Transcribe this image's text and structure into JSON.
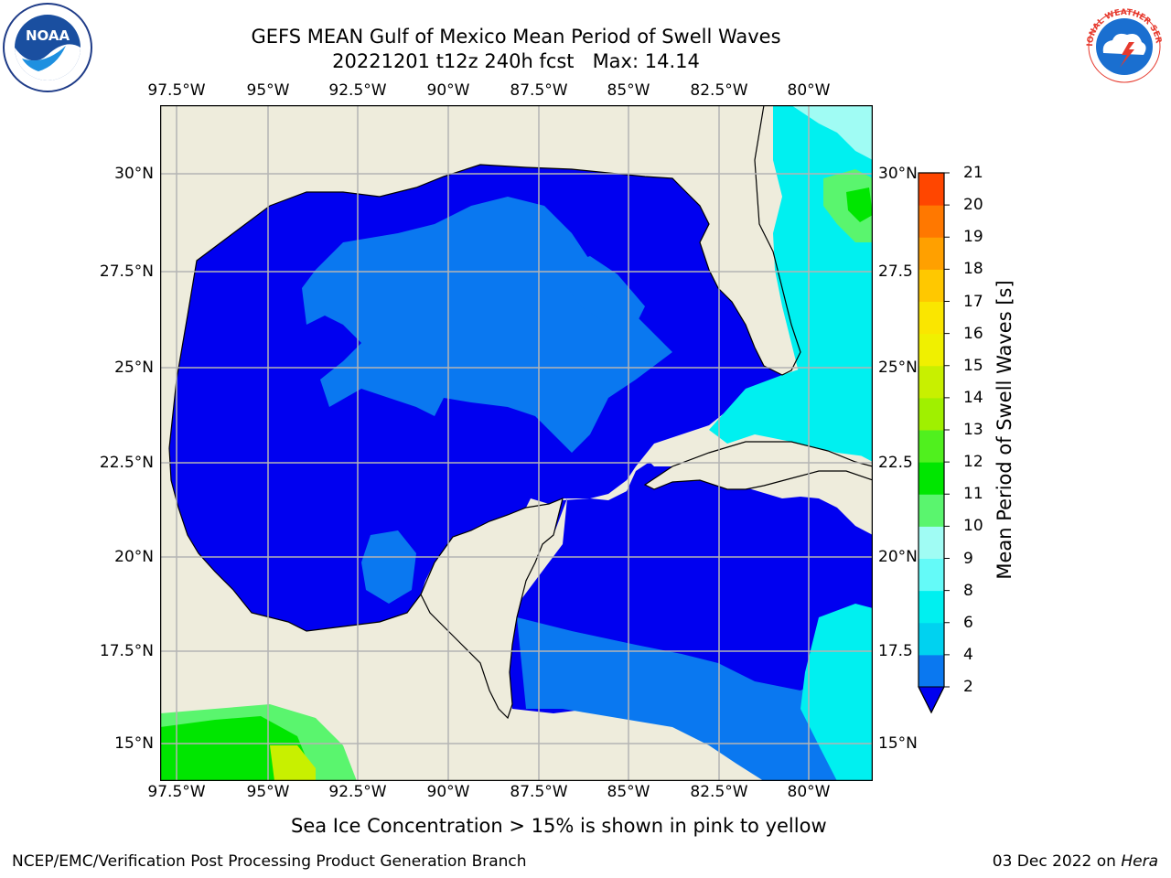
{
  "title": {
    "line1": "GEFS MEAN Gulf of Mexico Mean Period of Swell Waves",
    "line2": "20221201 t12z 240h fcst   Max: 14.14"
  },
  "map": {
    "lon_labels": [
      "97.5°W",
      "95°W",
      "92.5°W",
      "90°W",
      "87.5°W",
      "85°W",
      "82.5°W",
      "80°W"
    ],
    "lat_labels_left": [
      "30°N",
      "27.5°N",
      "25°N",
      "22.5°N",
      "20°N",
      "17.5°N",
      "15°N"
    ],
    "lat_labels_right": [
      "30°N",
      "27.5",
      "25°N",
      "22.5",
      "20°N",
      "17.5",
      "15°N"
    ],
    "colors": {
      "land": "#eeecdc",
      "deep_blue": "#0000f0",
      "mid_blue": "#0a78f0",
      "cyan": "#00f0f0",
      "light_cyan": "#90faf4",
      "green": "#00e600",
      "light_green": "#5af56e",
      "yellow_green": "#c8f000",
      "grid": "#b4b4b4"
    }
  },
  "colorbar": {
    "label": "Mean Period of Swell Waves [s]",
    "ticks": [
      "2",
      "4",
      "6",
      "8",
      "9",
      "10",
      "11",
      "12",
      "13",
      "14",
      "15",
      "16",
      "17",
      "18",
      "19",
      "20",
      "21"
    ],
    "colors": [
      "#0a78f0",
      "#00d2f0",
      "#00f0f0",
      "#64faf8",
      "#a0fcf4",
      "#5af56e",
      "#00e600",
      "#50f01e",
      "#a0f000",
      "#c8f000",
      "#f0f000",
      "#fae600",
      "#ffc800",
      "#ffa000",
      "#ff7800",
      "#ff4600",
      "#ff0000"
    ],
    "extend_color": "#0000f0"
  },
  "subtitle": "Sea Ice Concentration > 15% is shown in pink to yellow",
  "footer": {
    "left": "NCEP/EMC/Verification Post Processing Product Generation Branch",
    "right_date": "03 Dec 2022 on ",
    "right_host": "Hera"
  },
  "logos": {
    "noaa": {
      "icon": "noaa-logo",
      "text": "NOAA"
    },
    "nws": {
      "icon": "nws-logo",
      "text": "NATIONAL WEATHER SERVICE"
    }
  }
}
